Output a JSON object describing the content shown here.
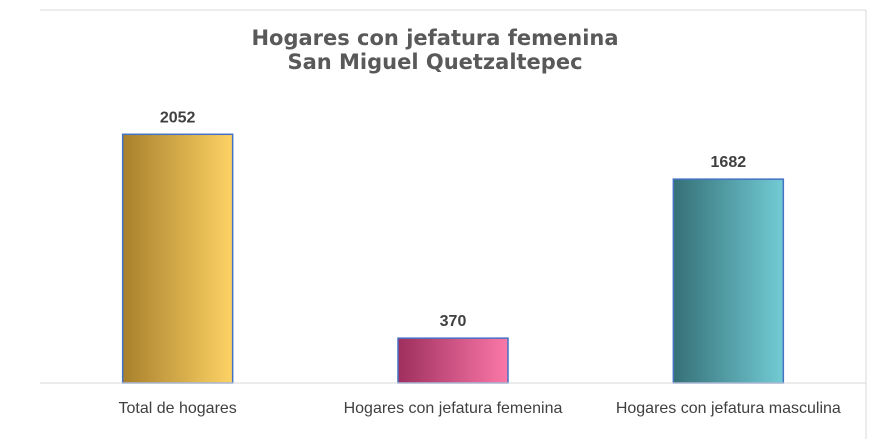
{
  "chart_data": {
    "type": "bar",
    "title": "Hogares con jefatura femenina",
    "subtitle": "San Miguel Quetzaltepec",
    "categories": [
      "Total de hogares",
      "Hogares con jefatura femenina",
      "Hogares con jefatura masculina"
    ],
    "values": [
      2052,
      370,
      1682
    ],
    "colors": [
      [
        "#a8802c",
        "#fdd265"
      ],
      [
        "#9e2f5e",
        "#fb78a8"
      ],
      [
        "#357077",
        "#72cbd4"
      ]
    ],
    "ylim": [
      0,
      2500
    ],
    "grid": false
  }
}
